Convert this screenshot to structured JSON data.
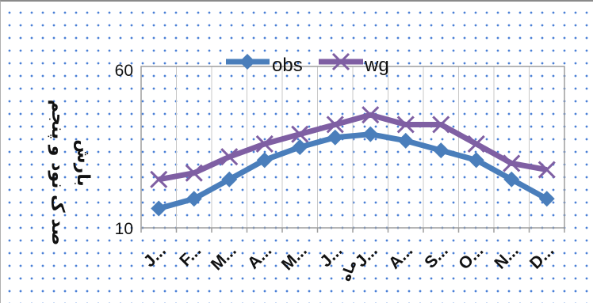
{
  "chart_data": {
    "type": "line",
    "categories": [
      "J...",
      "F...",
      "M...",
      "A...",
      "M...",
      "J...",
      "J...",
      "A...",
      "S...",
      "O...",
      "N...",
      "D..."
    ],
    "series": [
      {
        "name": "obs",
        "color": "#4a7ebb",
        "marker": "diamond",
        "values": [
          16,
          19,
          25,
          31,
          35,
          38,
          39,
          37,
          34,
          31,
          25,
          19
        ]
      },
      {
        "name": "wg",
        "color": "#7f5fa3",
        "marker": "x",
        "values": [
          25,
          27,
          32,
          36,
          39,
          42,
          45,
          42,
          42,
          36,
          30,
          28
        ]
      }
    ],
    "ylim": [
      10,
      60
    ],
    "yticks": [
      "10",
      "60"
    ],
    "ylabel": "صد ک نود و پنجم",
    "ylabel2": "بارش",
    "xlabel": "ماه",
    "legend_position": "top",
    "grid": "vertical"
  }
}
